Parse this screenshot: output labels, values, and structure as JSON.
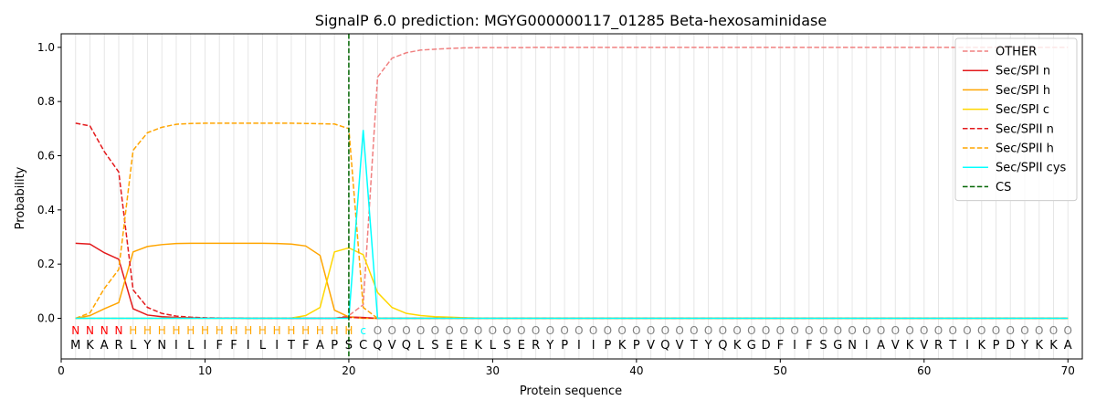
{
  "chart_data": {
    "type": "line",
    "title": "SignalP 6.0 prediction: MGYG000000117_01285 Beta-hexosaminidase",
    "xlabel": "Protein sequence",
    "ylabel": "Probability",
    "xlim": [
      0,
      71
    ],
    "ylim": [
      -0.15,
      1.05
    ],
    "x_ticks": [
      0,
      10,
      20,
      30,
      40,
      50,
      60,
      70
    ],
    "y_ticks": [
      0.0,
      0.2,
      0.4,
      0.6,
      0.8,
      1.0
    ],
    "y_tick_labels": [
      "0.0",
      "0.2",
      "0.4",
      "0.6",
      "0.8",
      "1.0"
    ],
    "grid": "vertical lines at every residue",
    "legend_position": "top-right",
    "sequence": [
      "M",
      "K",
      "A",
      "R",
      "L",
      "Y",
      "N",
      "I",
      "L",
      "I",
      "F",
      "F",
      "I",
      "L",
      "I",
      "T",
      "F",
      "A",
      "P",
      "S",
      "C",
      "Q",
      "V",
      "Q",
      "L",
      "S",
      "E",
      "E",
      "K",
      "L",
      "S",
      "E",
      "R",
      "Y",
      "P",
      "I",
      "I",
      "P",
      "K",
      "P",
      "V",
      "Q",
      "V",
      "T",
      "Y",
      "Q",
      "K",
      "G",
      "D",
      "F",
      "I",
      "F",
      "S",
      "G",
      "N",
      "I",
      "A",
      "V",
      "K",
      "V",
      "R",
      "T",
      "I",
      "K",
      "P",
      "D",
      "Y",
      "K",
      "K",
      "A"
    ],
    "region_labels": [
      "N",
      "N",
      "N",
      "N",
      "H",
      "H",
      "H",
      "H",
      "H",
      "H",
      "H",
      "H",
      "H",
      "H",
      "H",
      "H",
      "H",
      "H",
      "H",
      "H",
      "c",
      "O",
      "O",
      "O",
      "O",
      "O",
      "O",
      "O",
      "O",
      "O",
      "O",
      "O",
      "O",
      "O",
      "O",
      "O",
      "O",
      "O",
      "O",
      "O",
      "O",
      "O",
      "O",
      "O",
      "O",
      "O",
      "O",
      "O",
      "O",
      "O",
      "O",
      "O",
      "O",
      "O",
      "O",
      "O",
      "O",
      "O",
      "O",
      "O",
      "O",
      "O",
      "O",
      "O",
      "O",
      "O",
      "O",
      "O",
      "O",
      "O"
    ],
    "region_colors": {
      "N": "#ff0000",
      "H": "#ffa500",
      "c": "#00ffff",
      "O": "#808080"
    },
    "cs_position": 20,
    "series": [
      {
        "name": "OTHER",
        "color": "#f08080",
        "dash": true,
        "values": [
          0.0,
          0.0,
          0.0,
          0.0,
          0.0,
          0.0,
          0.0,
          0.0,
          0.0,
          0.0,
          0.0,
          0.0,
          0.0,
          0.0,
          0.0,
          0.0,
          0.0,
          0.0,
          0.0,
          0.01,
          0.05,
          0.89,
          0.96,
          0.98,
          0.99,
          0.993,
          0.996,
          0.998,
          0.999,
          0.999,
          0.999,
          0.999,
          1.0,
          1.0,
          1.0,
          1.0,
          1.0,
          1.0,
          1.0,
          1.0,
          1.0,
          1.0,
          1.0,
          1.0,
          1.0,
          1.0,
          1.0,
          1.0,
          1.0,
          1.0,
          1.0,
          1.0,
          1.0,
          1.0,
          1.0,
          1.0,
          1.0,
          1.0,
          1.0,
          1.0,
          1.0,
          1.0,
          1.0,
          1.0,
          1.0,
          1.0,
          1.0,
          1.0,
          1.0,
          1.0
        ]
      },
      {
        "name": "Sec/SPI n",
        "color": "#e31a1c",
        "dash": false,
        "values": [
          0.277,
          0.274,
          0.242,
          0.218,
          0.035,
          0.012,
          0.006,
          0.003,
          0.002,
          0.001,
          0.001,
          0.001,
          0.0,
          0.0,
          0.0,
          0.0,
          0.0,
          0.0,
          0.0,
          0.005,
          0.003,
          0.0,
          0.0,
          0.0,
          0.0,
          0.0,
          0.0,
          0.0,
          0.0,
          0.0,
          0.0,
          0.0,
          0.0,
          0.0,
          0.0,
          0.0,
          0.0,
          0.0,
          0.0,
          0.0,
          0.0,
          0.0,
          0.0,
          0.0,
          0.0,
          0.0,
          0.0,
          0.0,
          0.0,
          0.0,
          0.0,
          0.0,
          0.0,
          0.0,
          0.0,
          0.0,
          0.0,
          0.0,
          0.0,
          0.0,
          0.0,
          0.0,
          0.0,
          0.0,
          0.0,
          0.0,
          0.0,
          0.0,
          0.0,
          0.0
        ]
      },
      {
        "name": "Sec/SPI h",
        "color": "#ffa500",
        "dash": false,
        "values": [
          0.0,
          0.01,
          0.035,
          0.058,
          0.245,
          0.265,
          0.272,
          0.276,
          0.277,
          0.277,
          0.277,
          0.277,
          0.277,
          0.277,
          0.276,
          0.274,
          0.267,
          0.232,
          0.03,
          0.005,
          0.0,
          0.0,
          0.0,
          0.0,
          0.0,
          0.0,
          0.0,
          0.0,
          0.0,
          0.0,
          0.0,
          0.0,
          0.0,
          0.0,
          0.0,
          0.0,
          0.0,
          0.0,
          0.0,
          0.0,
          0.0,
          0.0,
          0.0,
          0.0,
          0.0,
          0.0,
          0.0,
          0.0,
          0.0,
          0.0,
          0.0,
          0.0,
          0.0,
          0.0,
          0.0,
          0.0,
          0.0,
          0.0,
          0.0,
          0.0,
          0.0,
          0.0,
          0.0,
          0.0,
          0.0,
          0.0,
          0.0,
          0.0,
          0.0,
          0.0
        ]
      },
      {
        "name": "Sec/SPI c",
        "color": "#ffd700",
        "dash": false,
        "values": [
          0.0,
          0.0,
          0.0,
          0.0,
          0.0,
          0.0,
          0.0,
          0.0,
          0.0,
          0.0,
          0.0,
          0.0,
          0.0,
          0.0,
          0.0,
          0.001,
          0.01,
          0.04,
          0.245,
          0.26,
          0.235,
          0.095,
          0.04,
          0.018,
          0.01,
          0.006,
          0.004,
          0.002,
          0.001,
          0.0,
          0.0,
          0.0,
          0.0,
          0.0,
          0.0,
          0.0,
          0.0,
          0.0,
          0.0,
          0.0,
          0.0,
          0.0,
          0.0,
          0.0,
          0.0,
          0.0,
          0.0,
          0.0,
          0.0,
          0.0,
          0.0,
          0.0,
          0.0,
          0.0,
          0.0,
          0.0,
          0.0,
          0.0,
          0.0,
          0.0,
          0.0,
          0.0,
          0.0,
          0.0,
          0.0,
          0.0,
          0.0,
          0.0,
          0.0,
          0.0
        ]
      },
      {
        "name": "Sec/SPII n",
        "color": "#e31a1c",
        "dash": true,
        "values": [
          0.72,
          0.71,
          0.615,
          0.54,
          0.105,
          0.04,
          0.018,
          0.008,
          0.004,
          0.002,
          0.001,
          0.001,
          0.0,
          0.0,
          0.0,
          0.0,
          0.0,
          0.0,
          0.0,
          0.003,
          0.002,
          0.0,
          0.0,
          0.0,
          0.0,
          0.0,
          0.0,
          0.0,
          0.0,
          0.0,
          0.0,
          0.0,
          0.0,
          0.0,
          0.0,
          0.0,
          0.0,
          0.0,
          0.0,
          0.0,
          0.0,
          0.0,
          0.0,
          0.0,
          0.0,
          0.0,
          0.0,
          0.0,
          0.0,
          0.0,
          0.0,
          0.0,
          0.0,
          0.0,
          0.0,
          0.0,
          0.0,
          0.0,
          0.0,
          0.0,
          0.0,
          0.0,
          0.0,
          0.0,
          0.0,
          0.0,
          0.0,
          0.0,
          0.0,
          0.0
        ]
      },
      {
        "name": "Sec/SPII h",
        "color": "#ffa500",
        "dash": true,
        "values": [
          0.0,
          0.02,
          0.11,
          0.18,
          0.62,
          0.685,
          0.705,
          0.716,
          0.719,
          0.72,
          0.72,
          0.72,
          0.72,
          0.72,
          0.72,
          0.72,
          0.719,
          0.718,
          0.717,
          0.7,
          0.04,
          0.0,
          0.0,
          0.0,
          0.0,
          0.0,
          0.0,
          0.0,
          0.0,
          0.0,
          0.0,
          0.0,
          0.0,
          0.0,
          0.0,
          0.0,
          0.0,
          0.0,
          0.0,
          0.0,
          0.0,
          0.0,
          0.0,
          0.0,
          0.0,
          0.0,
          0.0,
          0.0,
          0.0,
          0.0,
          0.0,
          0.0,
          0.0,
          0.0,
          0.0,
          0.0,
          0.0,
          0.0,
          0.0,
          0.0,
          0.0,
          0.0,
          0.0,
          0.0,
          0.0,
          0.0,
          0.0,
          0.0,
          0.0,
          0.0
        ]
      },
      {
        "name": "Sec/SPII cys",
        "color": "#00ffff",
        "dash": false,
        "values": [
          0.0,
          0.0,
          0.0,
          0.0,
          0.0,
          0.0,
          0.0,
          0.0,
          0.0,
          0.0,
          0.0,
          0.0,
          0.0,
          0.0,
          0.0,
          0.0,
          0.0,
          0.0,
          0.0,
          0.0,
          0.695,
          0.0,
          0.0,
          0.0,
          0.0,
          0.0,
          0.0,
          0.0,
          0.0,
          0.0,
          0.0,
          0.0,
          0.0,
          0.0,
          0.0,
          0.0,
          0.0,
          0.0,
          0.0,
          0.0,
          0.0,
          0.0,
          0.0,
          0.0,
          0.0,
          0.0,
          0.0,
          0.0,
          0.0,
          0.0,
          0.0,
          0.0,
          0.0,
          0.0,
          0.0,
          0.0,
          0.0,
          0.0,
          0.0,
          0.0,
          0.0,
          0.0,
          0.0,
          0.0,
          0.0,
          0.0,
          0.0,
          0.0,
          0.0,
          0.0
        ]
      }
    ],
    "cs_legend": {
      "name": "CS",
      "color": "#006400",
      "dash": true
    }
  }
}
